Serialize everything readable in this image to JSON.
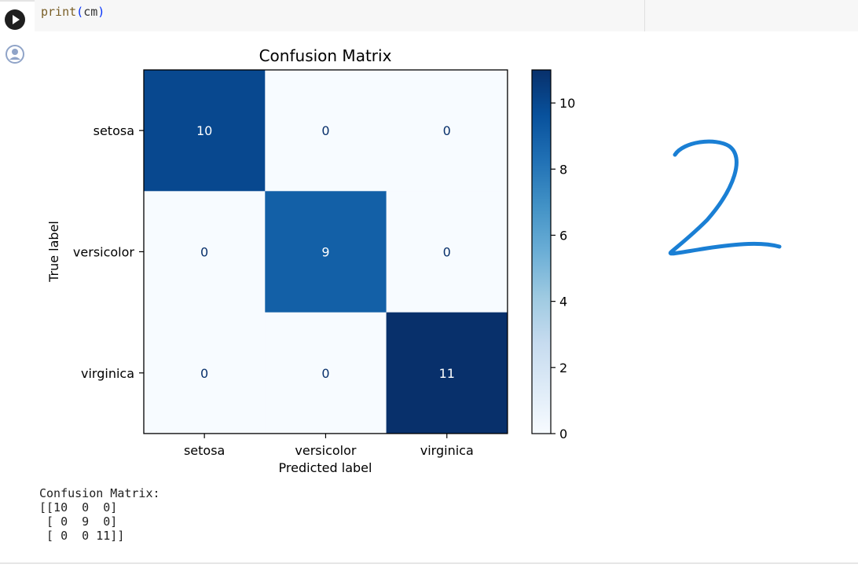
{
  "code_cell": {
    "fn": "print",
    "open_paren": "(",
    "arg": "cm",
    "close_paren": ")"
  },
  "icons": {
    "run": "play-icon",
    "output": "account-circle-icon",
    "annotation": "handwritten-2"
  },
  "colors": {
    "colormap_low": "#f7fbff",
    "colormap_high": "#08306b",
    "run_button": "#1f1f1f",
    "annotation_ink": "#1a7fd4"
  },
  "output_text": "Confusion Matrix:\n[[10  0  0]\n [ 0  9  0]\n [ 0  0 11]]",
  "handwritten_annotation": "2",
  "chart_data": {
    "type": "heatmap",
    "title": "Confusion Matrix",
    "xlabel": "Predicted label",
    "ylabel": "True label",
    "x_categories": [
      "setosa",
      "versicolor",
      "virginica"
    ],
    "y_categories": [
      "setosa",
      "versicolor",
      "virginica"
    ],
    "values": [
      [
        10,
        0,
        0
      ],
      [
        0,
        9,
        0
      ],
      [
        0,
        0,
        11
      ]
    ],
    "colormap": "Blues",
    "colorbar": {
      "min": 0,
      "max": 11,
      "ticks": [
        0,
        2,
        4,
        6,
        8,
        10
      ]
    },
    "grid": false
  }
}
